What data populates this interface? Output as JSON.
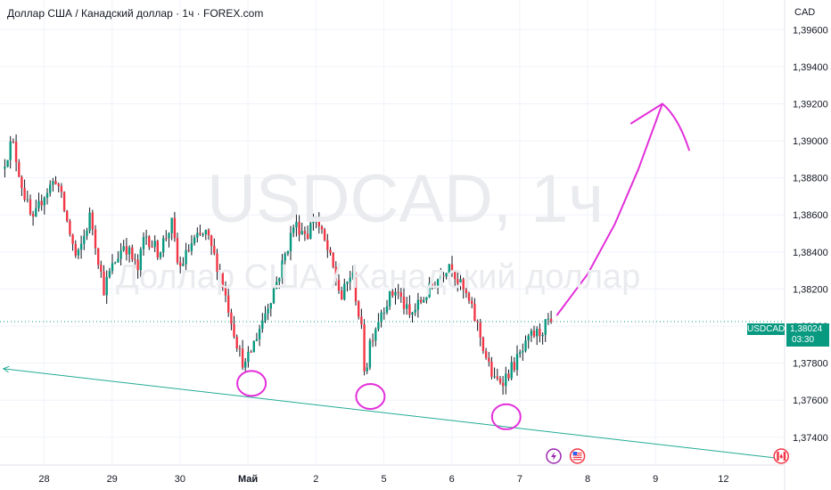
{
  "header": {
    "title": "Доллар США / Канадский доллар · 1ч · FOREX.com"
  },
  "watermark": {
    "symbol_interval": "USDCAD, 1ч",
    "description": "Доллар США / Канадский доллар"
  },
  "price_axis": {
    "currency": "CAD"
  },
  "last_price": {
    "symbol": "USDCAD",
    "value": "1,38024",
    "countdown": "03:30"
  },
  "colors": {
    "up": "#089981",
    "down": "#f23645",
    "wick": "#131722",
    "trendline": "#22ab94",
    "drawing": "#e32fd9"
  },
  "events": [
    {
      "name": "lightning-event-icon",
      "date": "7.5"
    },
    {
      "name": "us-flag-event-icon",
      "date": "7.85"
    },
    {
      "name": "canada-flag-event-icon",
      "date": "10.85"
    }
  ],
  "chart_data": {
    "type": "candlestick",
    "symbol": "USDCAD",
    "interval": "1ч",
    "y_ticks": [
      "1,37400",
      "1,37600",
      "1,37800",
      "1,38000",
      "1,38200",
      "1,38400",
      "1,38600",
      "1,38800",
      "1,39000",
      "1,39200",
      "1,39400",
      "1,39600"
    ],
    "x_ticks": [
      {
        "label": "28",
        "day": 0
      },
      {
        "label": "29",
        "day": 1
      },
      {
        "label": "30",
        "day": 2
      },
      {
        "label": "Май",
        "day": 3
      },
      {
        "label": "2",
        "day": 4
      },
      {
        "label": "5",
        "day": 5
      },
      {
        "label": "6",
        "day": 6
      },
      {
        "label": "7",
        "day": 7
      },
      {
        "label": "8",
        "day": 8
      },
      {
        "label": "9",
        "day": 9
      },
      {
        "label": "12",
        "day": 10
      }
    ],
    "ylim": [
      1.3725,
      1.3976
    ],
    "xlim": [
      -0.65,
      10.9
    ],
    "last_price": 1.38024,
    "path_days": [
      -0.6,
      -0.45,
      -0.3,
      -0.15,
      0.0,
      0.2,
      0.4,
      0.5,
      0.7,
      0.9,
      1.0,
      1.2,
      1.4,
      1.5,
      1.7,
      1.9,
      2.0,
      2.2,
      2.4,
      2.6,
      2.8,
      2.9,
      2.98,
      3.1,
      3.3,
      3.5,
      3.7,
      3.9,
      4.0,
      4.2,
      4.4,
      4.55,
      4.7,
      4.75,
      4.8,
      5.0,
      5.2,
      5.4,
      5.6,
      5.8,
      6.0,
      6.1,
      6.25,
      6.4,
      6.55,
      6.65,
      6.8,
      6.95,
      7.1,
      7.2,
      7.3,
      7.45
    ],
    "path_prices": [
      1.3885,
      1.39,
      1.3875,
      1.3855,
      1.387,
      1.388,
      1.385,
      1.3835,
      1.386,
      1.382,
      1.383,
      1.3845,
      1.383,
      1.385,
      1.384,
      1.3855,
      1.383,
      1.3845,
      1.385,
      1.383,
      1.38,
      1.3785,
      1.3778,
      1.379,
      1.381,
      1.383,
      1.3855,
      1.385,
      1.386,
      1.384,
      1.3815,
      1.383,
      1.3795,
      1.377,
      1.379,
      1.381,
      1.382,
      1.3805,
      1.3815,
      1.3825,
      1.3835,
      1.3825,
      1.3815,
      1.38,
      1.378,
      1.377,
      1.3772,
      1.378,
      1.3788,
      1.3795,
      1.3796,
      1.38024
    ],
    "trendline": {
      "from": {
        "day": -0.6,
        "price": 1.3777
      },
      "to": {
        "day": 10.85,
        "price": 1.37285
      }
    },
    "swing_lows": [
      {
        "day": 3.0,
        "price": 1.377
      },
      {
        "day": 4.75,
        "price": 1.3763
      },
      {
        "day": 6.75,
        "price": 1.3752
      }
    ],
    "projection_arrow": [
      {
        "day": 7.55,
        "price": 1.3806
      },
      {
        "day": 8.0,
        "price": 1.3828
      },
      {
        "day": 8.4,
        "price": 1.3855
      },
      {
        "day": 8.75,
        "price": 1.3885
      },
      {
        "day": 9.05,
        "price": 1.3915
      },
      {
        "day": 9.1,
        "price": 1.392
      }
    ],
    "grid": true
  }
}
